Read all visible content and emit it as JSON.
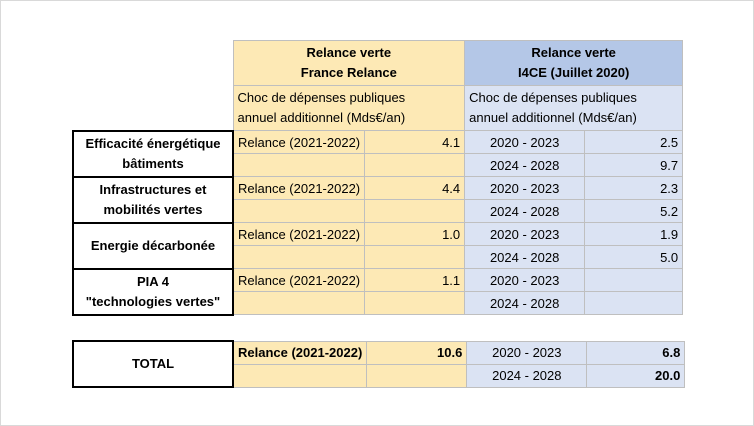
{
  "header": {
    "france": {
      "line1": "Relance verte",
      "line2": "France Relance"
    },
    "i4ce": {
      "line1": "Relance verte",
      "line2": "I4CE (Juillet 2020)"
    },
    "sub_france": {
      "line1": "Choc de dépenses publiques",
      "line2": "annuel additionnel (Mds€/an)"
    },
    "sub_i4ce": {
      "line1": "Choc de dépenses publiques",
      "line2": "annuel additionnel (Mds€/an)"
    }
  },
  "rows": [
    {
      "category": {
        "line1": "Efficacité énergétique",
        "line2": "bâtiments"
      },
      "relance_label": "Relance (2021-2022)",
      "relance_value": "4.1",
      "p1": "2020 - 2023",
      "v1": "2.5",
      "p2": "2024 - 2028",
      "v2": "9.7"
    },
    {
      "category": {
        "line1": "Infrastructures et",
        "line2": "mobilités vertes"
      },
      "relance_label": "Relance (2021-2022)",
      "relance_value": "4.4",
      "p1": "2020 - 2023",
      "v1": "2.3",
      "p2": "2024 - 2028",
      "v2": "5.2"
    },
    {
      "category": {
        "line1": "Energie décarbonée",
        "line2": ""
      },
      "relance_label": "Relance (2021-2022)",
      "relance_value": "1.0",
      "p1": "2020 - 2023",
      "v1": "1.9",
      "p2": "2024 - 2028",
      "v2": "5.0"
    },
    {
      "category": {
        "line1": "PIA 4",
        "line2": "\"technologies vertes\""
      },
      "relance_label": "Relance (2021-2022)",
      "relance_value": "1.1",
      "p1": "2020 - 2023",
      "v1": "",
      "p2": "2024 - 2028",
      "v2": ""
    }
  ],
  "total": {
    "label": "TOTAL",
    "relance_label": "Relance (2021-2022)",
    "relance_value": "10.6",
    "p1": "2020 - 2023",
    "v1": "6.8",
    "p2": "2024 - 2028",
    "v2": "20.0"
  }
}
